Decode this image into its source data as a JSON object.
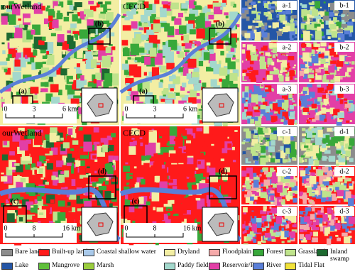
{
  "panels": [
    {
      "title": "ourWetland",
      "boxes": [
        "(a)",
        "(b)"
      ],
      "scale": [
        "0",
        "3",
        "6 km"
      ]
    },
    {
      "title": "CECD",
      "boxes": [
        "(a)",
        "(b)"
      ],
      "scale": [
        "0",
        "3",
        "6 km"
      ]
    },
    {
      "title": "ourWetland",
      "boxes": [
        "(c)",
        "(d)"
      ],
      "scale": [
        "0",
        "8",
        "16 km"
      ]
    },
    {
      "title": "CECD",
      "boxes": [
        "(c)",
        "(d)"
      ],
      "scale": [
        "0",
        "8",
        "16 km"
      ]
    }
  ],
  "insets": [
    "a-1",
    "b-1",
    "a-2",
    "b-2",
    "a-3",
    "b-3",
    "c-1",
    "d-1",
    "c-2",
    "d-2",
    "c-3",
    "d-3"
  ],
  "legend": [
    {
      "name": "Bare land",
      "color": "#8c8c8c"
    },
    {
      "name": "Built-up land",
      "color": "#ff1a1a"
    },
    {
      "name": "Coastal shallow water",
      "color": "#a9c9ea"
    },
    {
      "name": "Dryland",
      "color": "#f3eea3"
    },
    {
      "name": "Floodplain",
      "color": "#f5a9a9"
    },
    {
      "name": "Forest",
      "color": "#38a83a"
    },
    {
      "name": "Grassland",
      "color": "#bfe38c"
    },
    {
      "name": "Inland swamp",
      "color": "#1d6a30"
    },
    {
      "name": "Lake",
      "color": "#2456a6"
    },
    {
      "name": "Mangrove",
      "color": "#5fbf3a"
    },
    {
      "name": "Marsh",
      "color": "#9acd3e"
    },
    {
      "name": "Paddy field",
      "color": "#a3d8cc"
    },
    {
      "name": "Reservoir/Pond",
      "color": "#e23fa6"
    },
    {
      "name": "River",
      "color": "#5a7fd8"
    },
    {
      "name": "Tidal Flat",
      "color": "#f2e33a"
    }
  ]
}
